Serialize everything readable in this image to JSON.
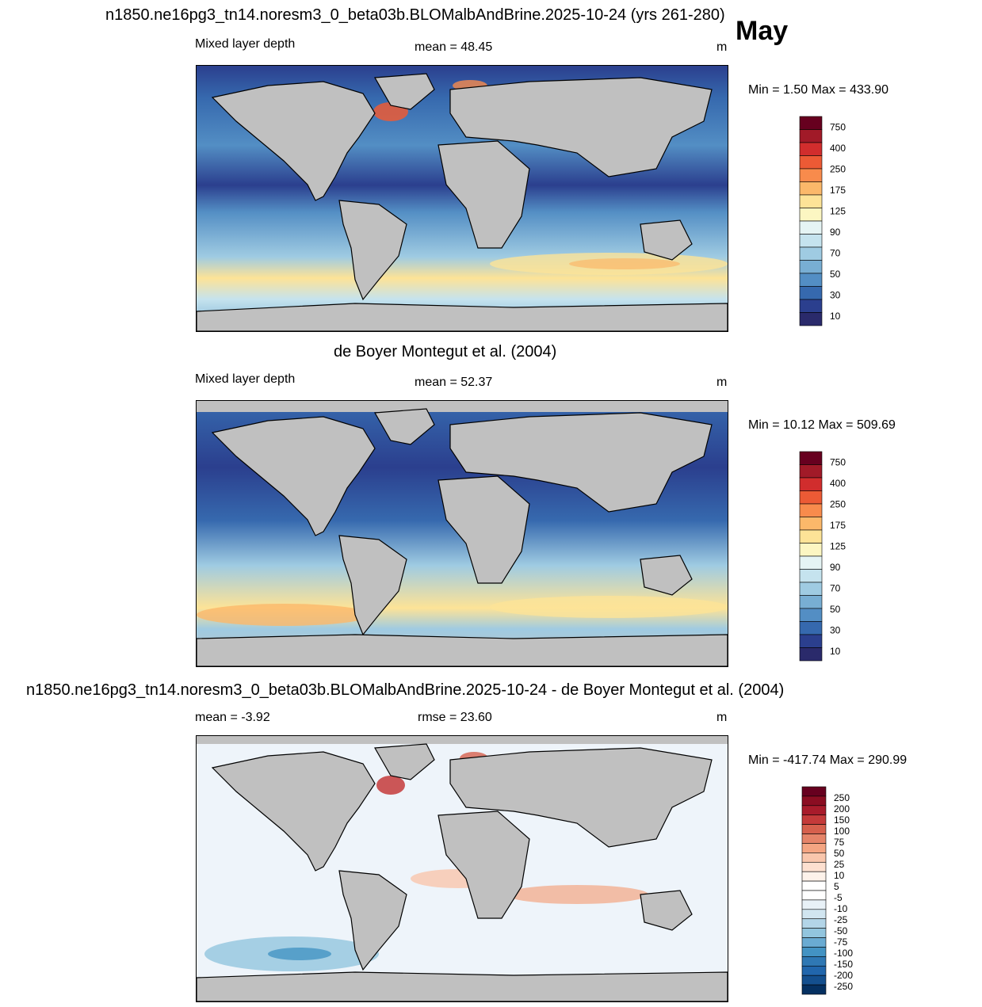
{
  "header": {
    "title": "n1850.ne16pg3_tn14.noresm3_0_beta03b.BLOMalbAndBrine.2025-10-24 (yrs 261-280)",
    "month": "May"
  },
  "panels": [
    {
      "variable": "Mixed layer depth",
      "stat1": "mean =  48.45",
      "units": "m",
      "minmax": "Min =   1.50 Max = 433.90",
      "colorbar": {
        "labels": [
          "750",
          "400",
          "250",
          "175",
          "125",
          "90",
          "70",
          "50",
          "30",
          "10"
        ],
        "colors": [
          "#67001f",
          "#a11a28",
          "#d12d2d",
          "#ec5a35",
          "#f88b4c",
          "#fbb86a",
          "#fde397",
          "#fcf6c2",
          "#e5f4f4",
          "#c5e3ee",
          "#9fcbe2",
          "#78aed3",
          "#538ec4",
          "#3669ae",
          "#2b3f8e",
          "#2a2a6b"
        ]
      }
    },
    {
      "title": "de Boyer Montegut et al. (2004)",
      "variable": "Mixed layer depth",
      "stat1": "mean =  52.37",
      "units": "m",
      "minmax": "Min =  10.12 Max = 509.69",
      "colorbar": {
        "labels": [
          "750",
          "400",
          "250",
          "175",
          "125",
          "90",
          "70",
          "50",
          "30",
          "10"
        ],
        "colors": [
          "#67001f",
          "#a11a28",
          "#d12d2d",
          "#ec5a35",
          "#f88b4c",
          "#fbb86a",
          "#fde397",
          "#fcf6c2",
          "#e5f4f4",
          "#c5e3ee",
          "#9fcbe2",
          "#78aed3",
          "#538ec4",
          "#3669ae",
          "#2b3f8e",
          "#2a2a6b"
        ]
      }
    },
    {
      "title": "n1850.ne16pg3_tn14.noresm3_0_beta03b.BLOMalbAndBrine.2025-10-24 - de Boyer Montegut et al. (2004)",
      "stat1": "mean =  -3.92",
      "stat2": "rmse =  23.60",
      "units": "m",
      "minmax": "Min = -417.74 Max = 290.99",
      "colorbar": {
        "labels": [
          "250",
          "200",
          "150",
          "100",
          "75",
          "50",
          "25",
          "10",
          "5",
          "-5",
          "-10",
          "-25",
          "-50",
          "-75",
          "-100",
          "-150",
          "-200",
          "-250"
        ],
        "colors": [
          "#67001f",
          "#8b0d22",
          "#a81b2b",
          "#c43a3a",
          "#d6604d",
          "#e58469",
          "#f4a582",
          "#f9c6ac",
          "#fde0d0",
          "#fdf2ea",
          "#ffffff",
          "#ffffff",
          "#e8f1f7",
          "#d1e5f0",
          "#b3d5e8",
          "#92c5de",
          "#6aabd2",
          "#4393c3",
          "#2f78b4",
          "#2166ac",
          "#144f8e",
          "#053061"
        ]
      }
    }
  ],
  "legend_colors": {
    "land": "#c0c0c0",
    "ocean_mid": "#6a9fd0"
  }
}
